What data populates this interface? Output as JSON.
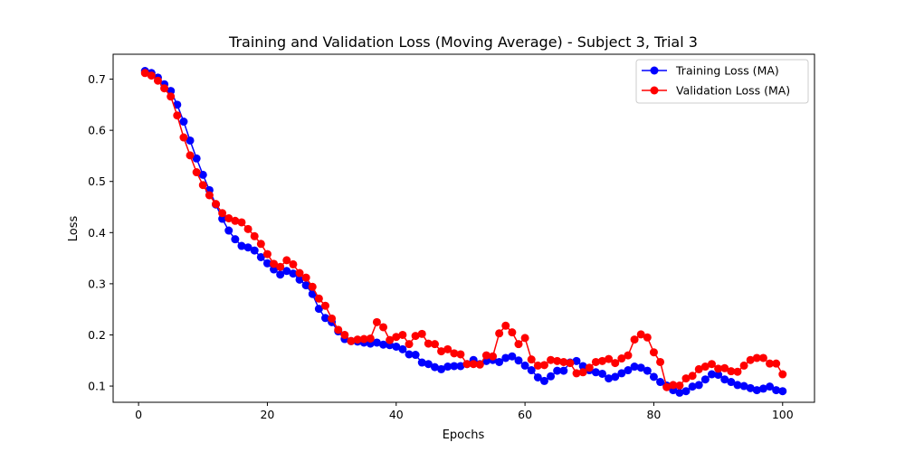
{
  "chart_data": {
    "type": "line",
    "title": "Training and Validation Loss (Moving Average) - Subject 3, Trial 3",
    "xlabel": "Epochs",
    "ylabel": "Loss",
    "xlim": [
      -3.95,
      104.95
    ],
    "ylim": [
      0.0683,
      0.7487
    ],
    "xticks": [
      0,
      20,
      40,
      60,
      80,
      100
    ],
    "yticks": [
      0.1,
      0.2,
      0.3,
      0.4,
      0.5,
      0.6,
      0.7
    ],
    "xtick_labels": [
      "0",
      "20",
      "40",
      "60",
      "80",
      "100"
    ],
    "ytick_labels": [
      "0.1",
      "0.2",
      "0.3",
      "0.4",
      "0.5",
      "0.6",
      "0.7"
    ],
    "grid": false,
    "legend_position": "top-right",
    "x": [
      1,
      2,
      3,
      4,
      5,
      6,
      7,
      8,
      9,
      10,
      11,
      12,
      13,
      14,
      15,
      16,
      17,
      18,
      19,
      20,
      21,
      22,
      23,
      24,
      25,
      26,
      27,
      28,
      29,
      30,
      31,
      32,
      33,
      34,
      35,
      36,
      37,
      38,
      39,
      40,
      41,
      42,
      43,
      44,
      45,
      46,
      47,
      48,
      49,
      50,
      51,
      52,
      53,
      54,
      55,
      56,
      57,
      58,
      59,
      60,
      61,
      62,
      63,
      64,
      65,
      66,
      67,
      68,
      69,
      70,
      71,
      72,
      73,
      74,
      75,
      76,
      77,
      78,
      79,
      80,
      81,
      82,
      83,
      84,
      85,
      86,
      87,
      88,
      89,
      90,
      91,
      92,
      93,
      94,
      95,
      96,
      97,
      98,
      99,
      100
    ],
    "series": [
      {
        "name": "Training Loss (MA)",
        "color": "#0000ff",
        "values": [
          0.716,
          0.712,
          0.703,
          0.69,
          0.677,
          0.65,
          0.617,
          0.58,
          0.545,
          0.513,
          0.483,
          0.455,
          0.427,
          0.404,
          0.387,
          0.374,
          0.371,
          0.365,
          0.352,
          0.34,
          0.328,
          0.318,
          0.325,
          0.32,
          0.308,
          0.297,
          0.28,
          0.251,
          0.233,
          0.225,
          0.207,
          0.192,
          0.188,
          0.187,
          0.185,
          0.183,
          0.185,
          0.181,
          0.18,
          0.177,
          0.172,
          0.162,
          0.161,
          0.146,
          0.143,
          0.137,
          0.133,
          0.138,
          0.139,
          0.139,
          0.143,
          0.151,
          0.143,
          0.149,
          0.151,
          0.147,
          0.155,
          0.158,
          0.15,
          0.14,
          0.131,
          0.117,
          0.11,
          0.119,
          0.13,
          0.13,
          0.146,
          0.149,
          0.139,
          0.131,
          0.127,
          0.124,
          0.115,
          0.118,
          0.125,
          0.131,
          0.138,
          0.136,
          0.13,
          0.118,
          0.108,
          0.101,
          0.092,
          0.087,
          0.09,
          0.099,
          0.102,
          0.113,
          0.123,
          0.122,
          0.113,
          0.108,
          0.102,
          0.1,
          0.096,
          0.092,
          0.095,
          0.099,
          0.092,
          0.09
        ]
      },
      {
        "name": "Validation Loss (MA)",
        "color": "#ff0000",
        "values": [
          0.712,
          0.707,
          0.697,
          0.682,
          0.666,
          0.629,
          0.586,
          0.551,
          0.518,
          0.493,
          0.473,
          0.456,
          0.438,
          0.428,
          0.423,
          0.42,
          0.407,
          0.393,
          0.378,
          0.358,
          0.339,
          0.333,
          0.346,
          0.338,
          0.321,
          0.312,
          0.294,
          0.271,
          0.257,
          0.232,
          0.21,
          0.2,
          0.188,
          0.191,
          0.192,
          0.193,
          0.225,
          0.215,
          0.19,
          0.196,
          0.2,
          0.182,
          0.198,
          0.202,
          0.183,
          0.182,
          0.168,
          0.172,
          0.164,
          0.162,
          0.143,
          0.143,
          0.142,
          0.16,
          0.158,
          0.203,
          0.218,
          0.205,
          0.182,
          0.194,
          0.152,
          0.14,
          0.141,
          0.151,
          0.149,
          0.147,
          0.145,
          0.125,
          0.127,
          0.136,
          0.147,
          0.149,
          0.153,
          0.145,
          0.154,
          0.16,
          0.191,
          0.201,
          0.195,
          0.166,
          0.147,
          0.098,
          0.102,
          0.101,
          0.115,
          0.12,
          0.133,
          0.138,
          0.143,
          0.134,
          0.135,
          0.129,
          0.128,
          0.14,
          0.151,
          0.155,
          0.155,
          0.144,
          0.144,
          0.123
        ]
      }
    ]
  }
}
